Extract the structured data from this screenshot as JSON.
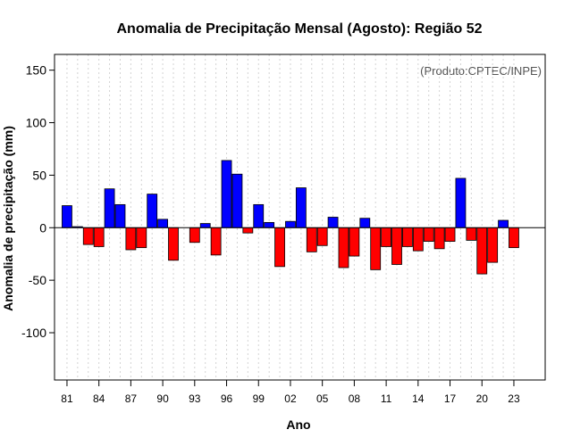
{
  "chart_data": {
    "type": "bar",
    "title": "Anomalia de Precipitação Mensal (Agosto): Região 52",
    "xlabel": "Ano",
    "ylabel": "Anomalia de precipitação (mm)",
    "credit": "(Produto:CPTEC/INPE)",
    "ylim": [
      -145,
      165
    ],
    "yticks": [
      -100,
      -50,
      0,
      50,
      100,
      150
    ],
    "x_tick_labels": [
      "81",
      "84",
      "87",
      "90",
      "93",
      "96",
      "99",
      "02",
      "05",
      "08",
      "11",
      "14",
      "17",
      "20",
      "23"
    ],
    "x_tick_every": 3,
    "categories": [
      "1981",
      "1982",
      "1983",
      "1984",
      "1985",
      "1986",
      "1987",
      "1988",
      "1989",
      "1990",
      "1991",
      "1992",
      "1993",
      "1994",
      "1995",
      "1996",
      "1997",
      "1998",
      "1999",
      "2000",
      "2001",
      "2002",
      "2003",
      "2004",
      "2005",
      "2006",
      "2007",
      "2008",
      "2009",
      "2010",
      "2011",
      "2012",
      "2013",
      "2014",
      "2015",
      "2016",
      "2017",
      "2018",
      "2019",
      "2020",
      "2021",
      "2022",
      "2023"
    ],
    "values": [
      21,
      1,
      -16,
      -18,
      37,
      22,
      -21,
      -19,
      32,
      8,
      -31,
      0,
      -14,
      4,
      -26,
      64,
      51,
      -5,
      22,
      5,
      -37,
      6,
      38,
      -23,
      -17,
      10,
      -38,
      -27,
      9,
      -40,
      -18,
      -35,
      -18,
      -22,
      -13,
      -20,
      -13,
      47,
      -12,
      -44,
      -33,
      7,
      -19
    ],
    "positive_color": "#0000ff",
    "negative_color": "#ff0000",
    "grid": true
  }
}
